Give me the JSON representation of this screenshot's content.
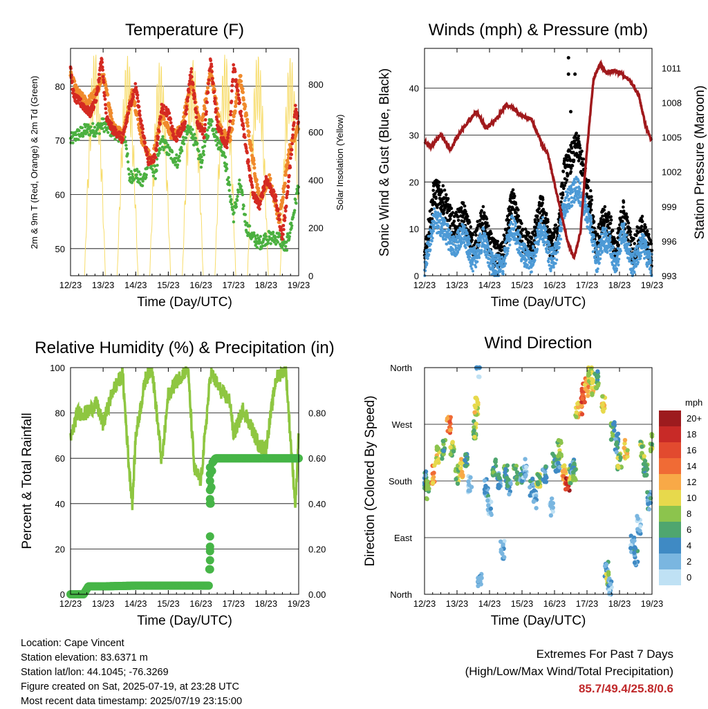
{
  "x_ticks": [
    "12/23",
    "13/23",
    "14/23",
    "15/23",
    "16/23",
    "17/23",
    "18/23",
    "19/23"
  ],
  "x_axis_label": "Time (Day/UTC)",
  "colors": {
    "temp_red": "#d42a22",
    "temp_orange": "#f08a2c",
    "dewpoint_green": "#4bb040",
    "insolation_yellow": "#f7dc6a",
    "wind_blue": "#4d9ad6",
    "gust_black": "#000000",
    "pressure_maroon": "#a0191c",
    "rh_lightgreen": "#8ec641",
    "precip_green": "#46b547"
  },
  "chart_data": [
    {
      "type": "line",
      "title": "Temperature (F)",
      "xlabel": "Time (Day/UTC)",
      "ylabel": "2m & 9m T (Red, Orange) & 2m Td (Green)",
      "y2label": "Solar Insolation (Yellow)",
      "ylim": [
        45,
        87
      ],
      "y2lim": [
        0,
        950
      ],
      "yticks": [
        50,
        60,
        70,
        80
      ],
      "y2ticks": [
        0,
        200,
        400,
        600,
        800
      ],
      "x_days": [
        12,
        19
      ],
      "series": [
        {
          "role": "2m T",
          "color": "#d42a22",
          "x": [
            12.0,
            12.1,
            12.3,
            12.6,
            12.8,
            12.95,
            13.0,
            13.1,
            13.3,
            13.5,
            13.6,
            13.8,
            14.0,
            14.2,
            14.4,
            14.6,
            14.8,
            15.0,
            15.2,
            15.5,
            15.7,
            15.9,
            16.1,
            16.3,
            16.5,
            16.7,
            16.8,
            16.9,
            17.0,
            17.2,
            17.4,
            17.6,
            17.8,
            18.0,
            18.3,
            18.5,
            18.7,
            18.9,
            19.0
          ],
          "y": [
            83,
            78,
            77,
            75,
            78,
            85,
            82,
            74,
            72,
            71,
            70,
            76,
            80,
            72,
            66,
            67,
            76,
            75,
            70,
            73,
            83,
            73,
            71,
            85,
            73,
            70,
            69,
            74,
            84,
            76,
            68,
            60,
            58,
            63,
            59,
            52,
            63,
            76,
            73
          ]
        },
        {
          "role": "9m T",
          "color": "#f08a2c",
          "x": [
            12.0,
            12.2,
            12.5,
            12.8,
            13.0,
            13.3,
            13.6,
            13.9,
            14.2,
            14.5,
            14.8,
            15.1,
            15.4,
            15.7,
            16.0,
            16.3,
            16.6,
            16.9,
            17.2,
            17.5,
            17.8,
            18.1,
            18.4,
            18.7,
            19.0
          ],
          "y": [
            82,
            79,
            77,
            79,
            82,
            73,
            71,
            79,
            70,
            66,
            75,
            71,
            72,
            81,
            72,
            83,
            72,
            70,
            82,
            70,
            59,
            63,
            55,
            68,
            73
          ]
        },
        {
          "role": "2m Td",
          "color": "#4bb040",
          "x": [
            12.0,
            12.2,
            12.5,
            12.8,
            13.0,
            13.2,
            13.5,
            13.7,
            13.8,
            14.0,
            14.2,
            14.4,
            14.6,
            14.8,
            15.0,
            15.3,
            15.5,
            15.7,
            16.0,
            16.3,
            16.5,
            16.7,
            16.9,
            17.0,
            17.2,
            17.4,
            17.6,
            17.8,
            18.0,
            18.2,
            18.4,
            18.6,
            18.8,
            19.0
          ],
          "y": [
            70,
            71,
            72,
            72,
            73,
            72,
            71,
            70,
            63,
            64,
            62,
            66,
            64,
            70,
            68,
            66,
            71,
            72,
            66,
            74,
            70,
            68,
            60,
            56,
            62,
            54,
            52,
            51,
            52,
            52,
            52,
            50,
            55,
            62
          ]
        },
        {
          "role": "Solar Insolation",
          "axis": "right",
          "color": "#f7dc6a",
          "peak_days": [
            12.75,
            13.75,
            14.75,
            15.75,
            16.75,
            17.75,
            18.75
          ],
          "peak_values": [
            940,
            920,
            900,
            910,
            930,
            930,
            920
          ]
        }
      ]
    },
    {
      "type": "scatter",
      "title": "Winds (mph) & Pressure (mb)",
      "xlabel": "Time (Day/UTC)",
      "ylabel": "Sonic Wind & Gust (Blue, Black)",
      "y2label": "Station Pressure (Maroon)",
      "ylim": [
        0,
        48.5
      ],
      "y2lim": [
        993,
        1012.7
      ],
      "yticks": [
        0,
        10,
        20,
        30,
        40
      ],
      "y2ticks": [
        993,
        996,
        999,
        1002,
        1005,
        1008,
        1011
      ],
      "x_days": [
        12,
        19
      ],
      "series": [
        {
          "role": "Gust",
          "color": "#000000",
          "x": [
            12.0,
            12.3,
            12.6,
            12.9,
            13.2,
            13.5,
            13.8,
            14.1,
            14.4,
            14.7,
            15.0,
            15.3,
            15.6,
            15.9,
            16.1,
            16.3,
            16.5,
            16.7,
            16.9,
            17.1,
            17.3,
            17.5,
            17.7,
            17.9,
            18.1,
            18.4,
            18.7,
            19.0
          ],
          "y": [
            4,
            18,
            16,
            10,
            13,
            6,
            12,
            5,
            4,
            16,
            8,
            6,
            15,
            6,
            9,
            22,
            25,
            28,
            22,
            16,
            6,
            12,
            11,
            4,
            14,
            5,
            10,
            4
          ]
        },
        {
          "role": "Wind",
          "color": "#4d9ad6",
          "x": [
            12.0,
            12.3,
            12.6,
            12.9,
            13.2,
            13.5,
            13.8,
            14.1,
            14.4,
            14.7,
            15.0,
            15.3,
            15.6,
            15.9,
            16.1,
            16.3,
            16.5,
            16.7,
            16.9,
            17.1,
            17.3,
            17.5,
            17.7,
            17.9,
            18.1,
            18.4,
            18.7,
            19.0
          ],
          "y": [
            2,
            12,
            10,
            6,
            9,
            3,
            8,
            2,
            2,
            11,
            5,
            3,
            11,
            3,
            6,
            15,
            17,
            19,
            15,
            11,
            3,
            8,
            7,
            2,
            10,
            2,
            7,
            2
          ]
        },
        {
          "role": "Pressure",
          "axis": "right",
          "color": "#a0191c",
          "x": [
            12.0,
            12.2,
            12.5,
            12.8,
            13.0,
            13.3,
            13.6,
            13.9,
            14.2,
            14.5,
            14.7,
            15.0,
            15.3,
            15.6,
            15.8,
            16.0,
            16.2,
            16.4,
            16.6,
            16.8,
            17.0,
            17.2,
            17.4,
            17.6,
            17.8,
            18.0,
            18.3,
            18.6,
            18.8,
            19.0
          ],
          "y": [
            1004.6,
            1004.2,
            1005.2,
            1003.9,
            1005.0,
            1006.2,
            1007.2,
            1005.8,
            1006.5,
            1007.8,
            1007.6,
            1006.8,
            1006.5,
            1004.5,
            1003.5,
            1001.0,
            998.5,
            996.0,
            994.5,
            996.8,
            1004.0,
            1010.0,
            1011.4,
            1010.5,
            1010.8,
            1010.6,
            1010.0,
            1008.6,
            1006.0,
            1004.6
          ]
        },
        {
          "role": "Gust outliers",
          "color": "#000000",
          "x": [
            16.43,
            16.43,
            16.63,
            16.5
          ],
          "y": [
            46.5,
            43.0,
            43.0,
            35.0
          ]
        }
      ]
    },
    {
      "type": "line",
      "title": "Relative Humidity (%) & Precipitation (in)",
      "xlabel": "Time (Day/UTC)",
      "ylabel": "Percent & Total Rainfall",
      "ylim": [
        0,
        100
      ],
      "y2lim": [
        0,
        1.0
      ],
      "yticks": [
        0,
        20,
        40,
        60,
        80,
        100
      ],
      "y2ticks": [
        "0.00",
        "0.20",
        "0.40",
        "0.60",
        "0.80"
      ],
      "x_days": [
        12,
        19
      ],
      "series": [
        {
          "role": "RH",
          "color": "#8ec641",
          "x": [
            12.0,
            12.2,
            12.5,
            12.8,
            13.0,
            13.3,
            13.6,
            13.8,
            13.9,
            14.0,
            14.3,
            14.5,
            14.8,
            15.0,
            15.3,
            15.6,
            15.8,
            16.0,
            16.3,
            16.6,
            16.9,
            17.0,
            17.3,
            17.6,
            17.8,
            18.0,
            18.3,
            18.6,
            18.8,
            18.9,
            19.0
          ],
          "y": [
            68,
            80,
            80,
            84,
            75,
            90,
            97,
            55,
            40,
            70,
            95,
            100,
            58,
            88,
            95,
            100,
            55,
            50,
            98,
            90,
            85,
            70,
            82,
            72,
            65,
            65,
            95,
            100,
            58,
            40,
            70
          ]
        },
        {
          "role": "Total Precipitation",
          "axis": "right",
          "color": "#46b547",
          "x": [
            12.0,
            12.4,
            12.55,
            13.0,
            14.0,
            15.0,
            16.0,
            16.25,
            16.3,
            16.35,
            16.45,
            17.0,
            18.0,
            19.0
          ],
          "y": [
            0.0,
            0.0,
            0.035,
            0.035,
            0.038,
            0.038,
            0.038,
            0.038,
            0.4,
            0.58,
            0.6,
            0.6,
            0.6,
            0.6
          ]
        }
      ]
    },
    {
      "type": "scatter",
      "title": "Wind Direction",
      "xlabel": "Time (Day/UTC)",
      "ylabel": "Direction (Colored By Speed)",
      "ylim": [
        0,
        360
      ],
      "ytick_labels": [
        "North",
        "East",
        "South",
        "West",
        "North"
      ],
      "x_days": [
        12,
        19
      ],
      "colorbar": {
        "title": "mph",
        "labels": [
          "20+",
          "18",
          "16",
          "14",
          "12",
          "10",
          "8",
          "6",
          "4",
          "2",
          "0"
        ],
        "colors": [
          "#9d1b1e",
          "#c82a27",
          "#e24a2f",
          "#f06b35",
          "#f8a947",
          "#e7d94c",
          "#8cc44d",
          "#4fa66f",
          "#3f8ac4",
          "#7ab6e0",
          "#bfe1f4"
        ]
      },
      "series": [
        {
          "role": "Direction",
          "x": [
            12.0,
            12.1,
            12.25,
            12.4,
            12.6,
            12.75,
            12.85,
            13.0,
            13.15,
            13.3,
            13.4,
            13.55,
            13.6,
            13.65,
            13.7,
            13.9,
            14.0,
            14.15,
            14.3,
            14.4,
            14.5,
            14.6,
            14.8,
            15.0,
            15.1,
            15.3,
            15.4,
            15.5,
            15.7,
            15.9,
            16.0,
            16.1,
            16.15,
            16.3,
            16.4,
            16.5,
            16.55,
            16.6,
            16.7,
            16.85,
            16.9,
            17.0,
            17.1,
            17.2,
            17.3,
            17.5,
            17.6,
            17.65,
            17.7,
            17.8,
            17.9,
            18.0,
            18.2,
            18.4,
            18.5,
            18.6,
            18.7,
            18.8,
            18.9,
            19.0
          ],
          "y": [
            180,
            165,
            190,
            220,
            230,
            270,
            230,
            190,
            200,
            210,
            175,
            260,
            300,
            360,
            20,
            170,
            140,
            200,
            180,
            70,
            190,
            170,
            190,
            190,
            200,
            170,
            150,
            180,
            190,
            140,
            210,
            200,
            230,
            190,
            170,
            190,
            200,
            195,
            290,
            300,
            320,
            330,
            350,
            330,
            340,
            300,
            40,
            20,
            10,
            260,
            240,
            210,
            230,
            80,
            60,
            110,
            230,
            200,
            150,
            240
          ],
          "speed": [
            4,
            8,
            12,
            10,
            6,
            14,
            8,
            8,
            10,
            6,
            2,
            8,
            10,
            2,
            3,
            4,
            2,
            6,
            4,
            2,
            6,
            4,
            6,
            4,
            2,
            4,
            2,
            8,
            4,
            2,
            6,
            4,
            8,
            12,
            18,
            8,
            4,
            6,
            10,
            14,
            16,
            12,
            8,
            10,
            6,
            10,
            4,
            8,
            2,
            6,
            4,
            8,
            10,
            2,
            4,
            2,
            8,
            6,
            4,
            8
          ]
        }
      ]
    }
  ],
  "info": {
    "location": "Location: Cape Vincent",
    "elevation": "Station elevation: 83.6371 m",
    "latlon": "Station lat/lon: 44.1045; -76.3269",
    "created": "Figure created on Sat, 2025-07-19, at 23:28 UTC",
    "recent": "Most recent data timestamp: 2025/07/19 23:15:00"
  },
  "extremes": {
    "line1": "Extremes For Past 7 Days",
    "line2": "(High/Low/Max Wind/Total Precipitation)",
    "value": "85.7/49.4/25.8/0.6"
  }
}
